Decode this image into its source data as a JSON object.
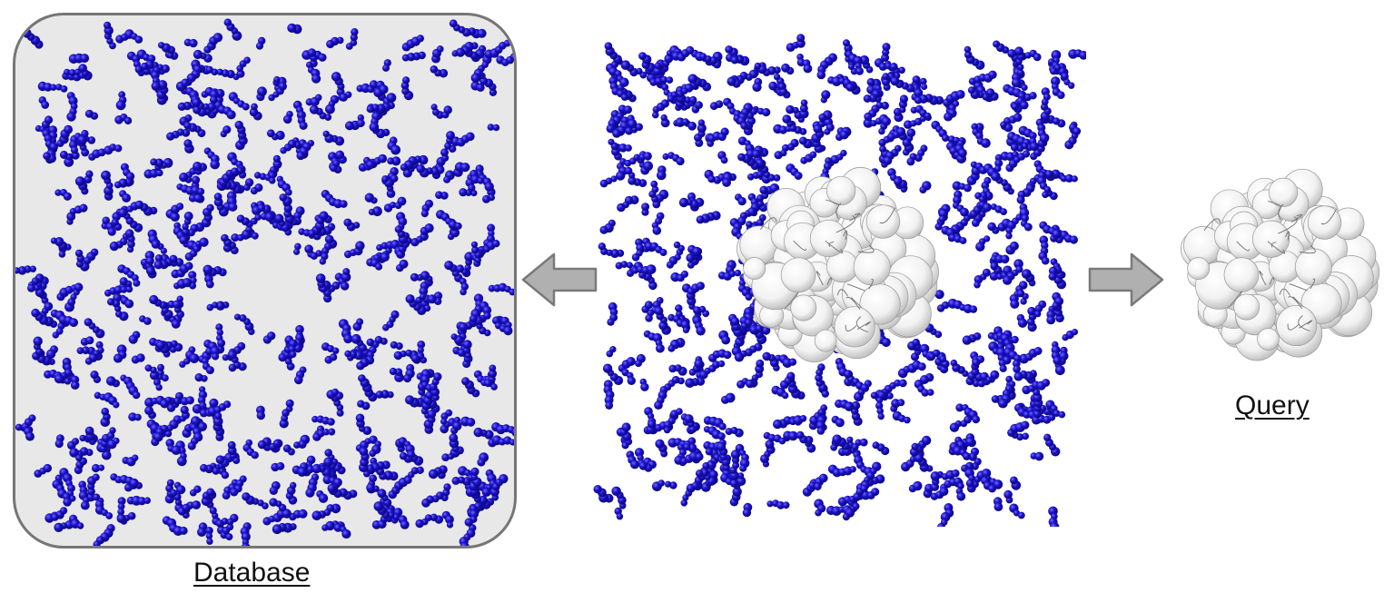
{
  "database_panel": {
    "caption": "Database"
  },
  "query_panel": {
    "caption": "Query"
  },
  "colors": {
    "particle_blue": "#1a10c8",
    "particle_dark": "#0a0670",
    "protein_surface": "#f2f2f2",
    "arrow_fill": "#b0b0b0",
    "arrow_stroke": "#7a7a7a",
    "panel_background": "#e8e8e8",
    "panel_border": "#767676"
  },
  "icons": [
    "arrow-left-icon",
    "arrow-right-icon"
  ]
}
